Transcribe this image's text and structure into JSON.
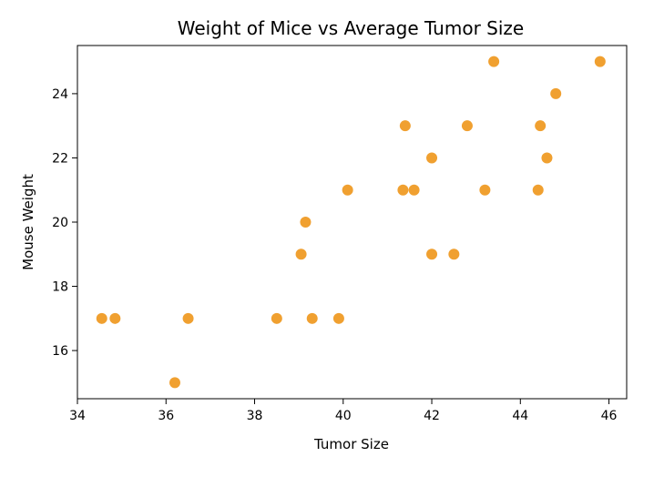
{
  "chart_data": {
    "type": "scatter",
    "title": "Weight of Mice vs Average Tumor Size",
    "xlabel": "Tumor Size",
    "ylabel": "Mouse Weight",
    "xlim": [
      34,
      46.4
    ],
    "ylim": [
      14.5,
      25.5
    ],
    "xticks": [
      34,
      36,
      38,
      40,
      42,
      44,
      46
    ],
    "yticks": [
      16,
      18,
      20,
      22,
      24
    ],
    "grid": false,
    "marker_color": "#F0A030",
    "series": [
      {
        "points": [
          {
            "x": 34.55,
            "y": 17
          },
          {
            "x": 34.85,
            "y": 17
          },
          {
            "x": 36.2,
            "y": 15
          },
          {
            "x": 36.5,
            "y": 17
          },
          {
            "x": 38.5,
            "y": 17
          },
          {
            "x": 39.05,
            "y": 19
          },
          {
            "x": 39.15,
            "y": 20
          },
          {
            "x": 39.3,
            "y": 17
          },
          {
            "x": 39.9,
            "y": 17
          },
          {
            "x": 40.1,
            "y": 21
          },
          {
            "x": 41.35,
            "y": 21
          },
          {
            "x": 41.4,
            "y": 23
          },
          {
            "x": 41.6,
            "y": 21
          },
          {
            "x": 42.0,
            "y": 22
          },
          {
            "x": 42.0,
            "y": 19
          },
          {
            "x": 42.5,
            "y": 19
          },
          {
            "x": 42.8,
            "y": 23
          },
          {
            "x": 43.2,
            "y": 21
          },
          {
            "x": 43.4,
            "y": 25
          },
          {
            "x": 44.4,
            "y": 21
          },
          {
            "x": 44.45,
            "y": 23
          },
          {
            "x": 44.6,
            "y": 22
          },
          {
            "x": 44.8,
            "y": 24
          },
          {
            "x": 45.8,
            "y": 25
          }
        ]
      }
    ]
  }
}
